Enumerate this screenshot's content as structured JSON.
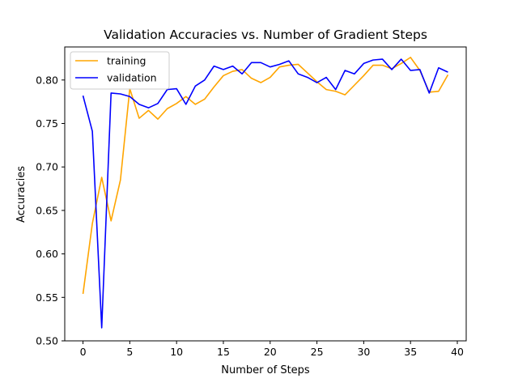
{
  "chart_data": {
    "type": "line",
    "title": "Validation Accuracies vs. Number of Gradient Steps",
    "xlabel": "Number of Steps",
    "ylabel": "Accuracies",
    "xlim": [
      -1.95,
      40.95
    ],
    "ylim": [
      0.5,
      0.838
    ],
    "xticks": [
      0,
      5,
      10,
      15,
      20,
      25,
      30,
      35,
      40
    ],
    "yticks": [
      0.5,
      0.55,
      0.6,
      0.65,
      0.7,
      0.75,
      0.8
    ],
    "xtick_labels": [
      "0",
      "5",
      "10",
      "15",
      "20",
      "25",
      "30",
      "35",
      "40"
    ],
    "ytick_labels": [
      "0.50",
      "0.55",
      "0.60",
      "0.65",
      "0.70",
      "0.75",
      "0.80"
    ],
    "grid": false,
    "legend_position": "top-left",
    "x": [
      0,
      1,
      2,
      3,
      4,
      5,
      6,
      7,
      8,
      9,
      10,
      11,
      12,
      13,
      14,
      15,
      16,
      17,
      18,
      19,
      20,
      21,
      22,
      23,
      24,
      25,
      26,
      27,
      28,
      29,
      30,
      31,
      32,
      33,
      34,
      35,
      36,
      37,
      38,
      39
    ],
    "series": [
      {
        "name": "training",
        "color": "#ffa500",
        "values": [
          0.554,
          0.635,
          0.688,
          0.638,
          0.685,
          0.79,
          0.756,
          0.765,
          0.755,
          0.767,
          0.773,
          0.781,
          0.772,
          0.778,
          0.792,
          0.805,
          0.81,
          0.812,
          0.802,
          0.797,
          0.803,
          0.815,
          0.817,
          0.818,
          0.808,
          0.798,
          0.789,
          0.787,
          0.783,
          0.794,
          0.805,
          0.817,
          0.817,
          0.813,
          0.819,
          0.826,
          0.811,
          0.786,
          0.787,
          0.806
        ]
      },
      {
        "name": "validation",
        "color": "#0000ff",
        "values": [
          0.782,
          0.741,
          0.515,
          0.785,
          0.784,
          0.781,
          0.772,
          0.768,
          0.773,
          0.789,
          0.79,
          0.772,
          0.793,
          0.8,
          0.816,
          0.812,
          0.816,
          0.807,
          0.82,
          0.82,
          0.815,
          0.818,
          0.822,
          0.807,
          0.803,
          0.797,
          0.803,
          0.789,
          0.811,
          0.807,
          0.819,
          0.823,
          0.824,
          0.812,
          0.824,
          0.811,
          0.812,
          0.785,
          0.814,
          0.809
        ]
      }
    ]
  }
}
